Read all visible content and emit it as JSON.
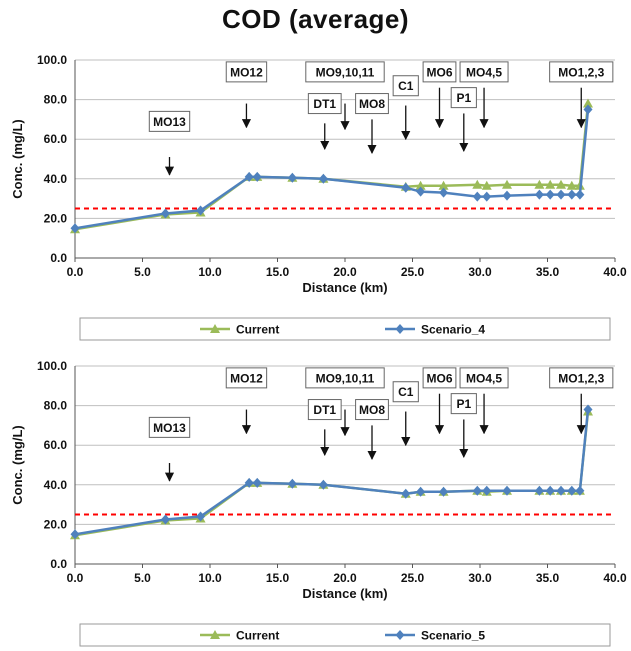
{
  "title": "COD (average)",
  "colors": {
    "current": "#9bbb59",
    "scenario": "#4f81bd",
    "threshold": "#ff0000",
    "grid": "#bfbfbf"
  },
  "chart_data": [
    {
      "type": "line",
      "xlabel": "Distance (km)",
      "ylabel": "Conc. (mg/L)",
      "xlim": [
        0,
        40
      ],
      "ylim": [
        0,
        100
      ],
      "xticks": [
        "0.0",
        "5.0",
        "10.0",
        "15.0",
        "20.0",
        "25.0",
        "30.0",
        "35.0",
        "40.0"
      ],
      "yticks": [
        "0.0",
        "20.0",
        "40.0",
        "60.0",
        "80.0",
        "100.0"
      ],
      "grid": "horizontal",
      "legend_position": "bottom",
      "threshold": 25,
      "series": [
        {
          "name": "Current",
          "x": [
            0.0,
            6.7,
            9.3,
            12.9,
            13.5,
            16.1,
            18.4,
            24.5,
            25.6,
            27.3,
            29.8,
            30.5,
            32.0,
            34.4,
            35.2,
            36.0,
            36.8,
            37.4,
            38.0
          ],
          "y": [
            14.5,
            22,
            23,
            41,
            41,
            40.5,
            40,
            36,
            36.5,
            36.5,
            37,
            36.5,
            37,
            37,
            37,
            37,
            36.5,
            36.5,
            78
          ]
        },
        {
          "name": "Scenario_4",
          "x": [
            0.0,
            6.7,
            9.3,
            12.9,
            13.5,
            16.1,
            18.4,
            24.5,
            25.6,
            27.3,
            29.8,
            30.5,
            32.0,
            34.4,
            35.2,
            36.0,
            36.8,
            37.4,
            38.0
          ],
          "y": [
            15,
            22.5,
            24,
            41,
            41,
            40.5,
            40,
            35.5,
            33.5,
            33,
            31,
            31,
            31.5,
            32,
            32,
            32,
            32,
            32,
            75
          ]
        }
      ],
      "annotations": [
        {
          "label": "MO13",
          "x": 7.0,
          "y_text": 69,
          "y_from": 51,
          "y_to": 42
        },
        {
          "label": "MO12",
          "x": 12.7,
          "y_text": 94,
          "y_from": 78,
          "y_to": 66
        },
        {
          "label": "MO9,10,11",
          "x": 20.0,
          "y_text": 94,
          "y_from": 78,
          "y_to": 65
        },
        {
          "label": "DT1",
          "x": 18.5,
          "y_text": 78,
          "y_from": 68,
          "y_to": 55
        },
        {
          "label": "MO8",
          "x": 22.0,
          "y_text": 78,
          "y_from": 70,
          "y_to": 53
        },
        {
          "label": "C1",
          "x": 24.5,
          "y_text": 87,
          "y_from": 77,
          "y_to": 60
        },
        {
          "label": "MO6",
          "x": 27.0,
          "y_text": 94,
          "y_from": 86,
          "y_to": 66
        },
        {
          "label": "MO4,5",
          "x": 30.3,
          "y_text": 94,
          "y_from": 86,
          "y_to": 66
        },
        {
          "label": "P1",
          "x": 28.8,
          "y_text": 81,
          "y_from": 73,
          "y_to": 54
        },
        {
          "label": "MO1,2,3",
          "x": 37.5,
          "y_text": 94,
          "y_from": 86,
          "y_to": 66
        }
      ]
    },
    {
      "type": "line",
      "xlabel": "Distance (km)",
      "ylabel": "Conc. (mg/L)",
      "xlim": [
        0,
        40
      ],
      "ylim": [
        0,
        100
      ],
      "xticks": [
        "0.0",
        "5.0",
        "10.0",
        "15.0",
        "20.0",
        "25.0",
        "30.0",
        "35.0",
        "40.0"
      ],
      "yticks": [
        "0.0",
        "20.0",
        "40.0",
        "60.0",
        "80.0",
        "100.0"
      ],
      "grid": "horizontal",
      "legend_position": "bottom",
      "threshold": 25,
      "series": [
        {
          "name": "Current",
          "x": [
            0.0,
            6.7,
            9.3,
            12.9,
            13.5,
            16.1,
            18.4,
            24.5,
            25.6,
            27.3,
            29.8,
            30.5,
            32.0,
            34.4,
            35.2,
            36.0,
            36.8,
            37.4,
            38.0
          ],
          "y": [
            14.5,
            22,
            23,
            41,
            41,
            40.5,
            40,
            35.5,
            36.5,
            36.5,
            37,
            36.5,
            37,
            37,
            37,
            37,
            37,
            37,
            77
          ]
        },
        {
          "name": "Scenario_5",
          "x": [
            0.0,
            6.7,
            9.3,
            12.9,
            13.5,
            16.1,
            18.4,
            24.5,
            25.6,
            27.3,
            29.8,
            30.5,
            32.0,
            34.4,
            35.2,
            36.0,
            36.8,
            37.4,
            38.0
          ],
          "y": [
            15,
            22.5,
            24,
            41,
            41,
            40.5,
            40,
            35.5,
            36.5,
            36.5,
            37,
            37,
            37,
            37,
            37,
            37,
            37,
            37,
            78
          ]
        }
      ],
      "annotations": [
        {
          "label": "MO13",
          "x": 7.0,
          "y_text": 69,
          "y_from": 51,
          "y_to": 42
        },
        {
          "label": "MO12",
          "x": 12.7,
          "y_text": 94,
          "y_from": 78,
          "y_to": 66
        },
        {
          "label": "MO9,10,11",
          "x": 20.0,
          "y_text": 94,
          "y_from": 78,
          "y_to": 65
        },
        {
          "label": "DT1",
          "x": 18.5,
          "y_text": 78,
          "y_from": 68,
          "y_to": 55
        },
        {
          "label": "MO8",
          "x": 22.0,
          "y_text": 78,
          "y_from": 70,
          "y_to": 53
        },
        {
          "label": "C1",
          "x": 24.5,
          "y_text": 87,
          "y_from": 77,
          "y_to": 60
        },
        {
          "label": "MO6",
          "x": 27.0,
          "y_text": 94,
          "y_from": 86,
          "y_to": 66
        },
        {
          "label": "MO4,5",
          "x": 30.3,
          "y_text": 94,
          "y_from": 86,
          "y_to": 66
        },
        {
          "label": "P1",
          "x": 28.8,
          "y_text": 81,
          "y_from": 73,
          "y_to": 54
        },
        {
          "label": "MO1,2,3",
          "x": 37.5,
          "y_text": 94,
          "y_from": 86,
          "y_to": 66
        }
      ]
    }
  ]
}
